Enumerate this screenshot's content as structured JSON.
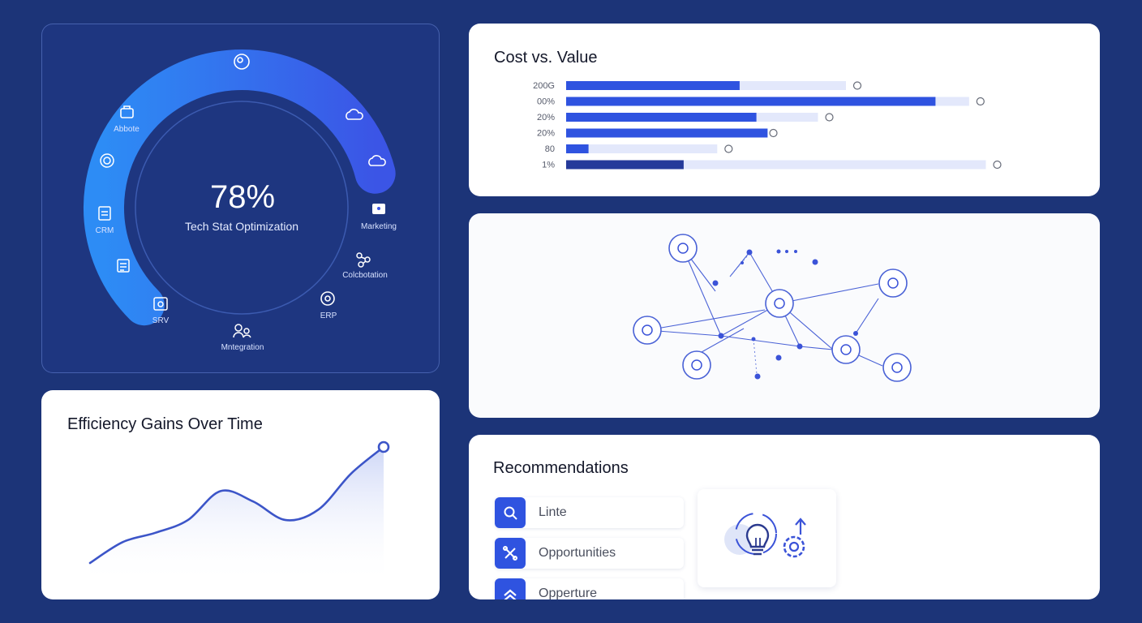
{
  "gauge": {
    "value": "78%",
    "label": "Tech Stat Optimization",
    "fill_fraction": 0.78,
    "segments": [
      {
        "label": "Abbote",
        "icon": "briefcase-icon"
      },
      {
        "label": "",
        "icon": "cloud-icon"
      },
      {
        "label": "",
        "icon": "cloud-upload-icon"
      },
      {
        "label": "Marketing",
        "icon": "megaphone-icon"
      },
      {
        "label": "Colcbotation",
        "icon": "share-icon"
      },
      {
        "label": "ERP",
        "icon": "target-icon"
      },
      {
        "label": "Mntegration",
        "icon": "people-icon"
      },
      {
        "label": "SRV",
        "icon": "bag-icon"
      },
      {
        "label": "",
        "icon": "checklist-icon"
      },
      {
        "label": "CRM",
        "icon": "clipboard-icon"
      },
      {
        "label": "",
        "icon": "settings-icon"
      }
    ]
  },
  "cost_chart": {
    "title": "Cost vs. Value",
    "chart_data": {
      "type": "bar",
      "title": "Cost vs. Value",
      "categories": [
        "200G",
        "00%",
        "20%",
        "20%",
        "80",
        "1%"
      ],
      "series": [
        {
          "values": [
            0.5,
            0.72,
            0.45,
            0.35,
            0.27,
            0.75
          ]
        },
        {
          "values": [
            0.31,
            0.66,
            0.34,
            0.36,
            0.04,
            0.21
          ]
        }
      ],
      "markers": [
        "eye-icon",
        "help-icon",
        "check-icon",
        "close-icon",
        "target-icon",
        "paper-plane-icon"
      ]
    }
  },
  "network": {
    "nodes": [
      "database-icon",
      "user-icon",
      "image-icon",
      "gauge-icon",
      "lightbulb-icon",
      "chart-icon",
      "trend-icon"
    ]
  },
  "efficiency": {
    "title": "Efficiency Gains Over Time",
    "chart_data": {
      "type": "area",
      "title": "Efficiency Gains Over Time",
      "x": [
        0,
        1,
        2,
        3,
        4,
        5,
        6,
        7,
        8,
        9
      ],
      "y": [
        0.0,
        0.18,
        0.26,
        0.37,
        0.62,
        0.53,
        0.37,
        0.46,
        0.77,
        1.0
      ],
      "grid": false,
      "markers": "last-point"
    }
  },
  "recommendations": {
    "title": "Recommendations",
    "items": [
      {
        "label": "Linte",
        "icon": "search-icon"
      },
      {
        "label": "Opportunities",
        "icon": "tools-icon"
      },
      {
        "label": "Opperture",
        "icon": "chevron-up-icon"
      }
    ],
    "card_icon": "lightbulb-gear-icon"
  },
  "colors": {
    "background": "#1c3478",
    "accent": "#2f53e0",
    "gauge_start": "#2d8cf5",
    "gauge_end": "#3b55e6",
    "bar_track": "#e3e8fb",
    "area_fill": "#dbe2fa"
  }
}
